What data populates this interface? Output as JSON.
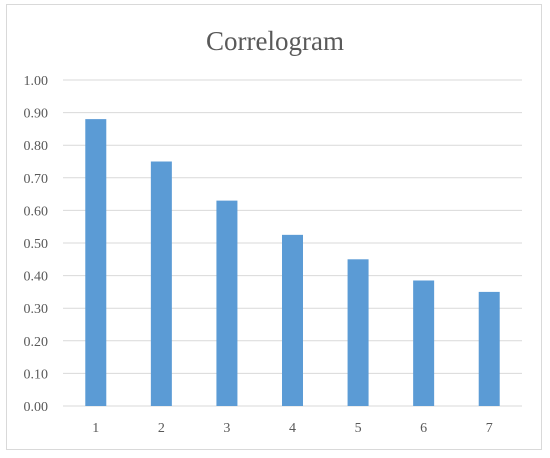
{
  "chart_data": {
    "type": "bar",
    "title": "Correlogram",
    "xlabel": "",
    "ylabel": "",
    "categories": [
      "1",
      "2",
      "3",
      "4",
      "5",
      "6",
      "7"
    ],
    "values": [
      0.88,
      0.75,
      0.63,
      0.525,
      0.45,
      0.385,
      0.35
    ],
    "ylim": [
      0,
      1
    ],
    "yticks": [
      "0.00",
      "0.10",
      "0.20",
      "0.30",
      "0.40",
      "0.50",
      "0.60",
      "0.70",
      "0.80",
      "0.90",
      "1.00"
    ],
    "grid": true,
    "legend": "none",
    "bar_color": "#5b9bd5",
    "grid_color": "#d9d9d9",
    "text_color": "#595959"
  }
}
